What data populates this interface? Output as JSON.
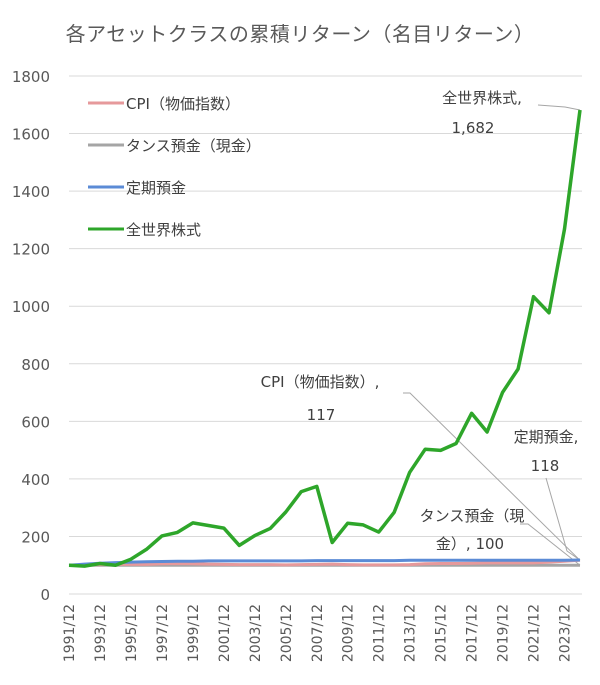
{
  "chart_data": {
    "type": "line",
    "title": "各アセットクラスの累積リターン（名目リターン）",
    "xlabel": "",
    "ylabel": "",
    "ylim": [
      0,
      1800
    ],
    "yticks": [
      0,
      200,
      400,
      600,
      800,
      1000,
      1200,
      1400,
      1600,
      1800
    ],
    "grid": true,
    "legend_position": "upper-left-inside",
    "x": [
      "1991/12",
      "1992/12",
      "1993/12",
      "1994/12",
      "1995/12",
      "1996/12",
      "1997/12",
      "1998/12",
      "1999/12",
      "2000/12",
      "2001/12",
      "2002/12",
      "2003/12",
      "2004/12",
      "2005/12",
      "2006/12",
      "2007/12",
      "2008/12",
      "2009/12",
      "2010/12",
      "2011/12",
      "2012/12",
      "2013/12",
      "2014/12",
      "2015/12",
      "2016/12",
      "2017/12",
      "2018/12",
      "2019/12",
      "2020/12",
      "2021/12",
      "2022/12",
      "2023/12",
      "2024/12"
    ],
    "xtick_labels": [
      "1991/12",
      "1993/12",
      "1995/12",
      "1997/12",
      "1999/12",
      "2001/12",
      "2003/12",
      "2005/12",
      "2007/12",
      "2009/12",
      "2011/12",
      "2013/12",
      "2015/12",
      "2017/12",
      "2019/12",
      "2021/12",
      "2023/12"
    ],
    "series": [
      {
        "name": "CPI（物価指数）",
        "color": "#E6999B",
        "values": [
          100,
          101,
          102,
          103,
          103,
          103,
          105,
          106,
          105,
          104,
          103,
          102,
          102,
          102,
          101,
          102,
          103,
          104,
          102,
          101,
          101,
          101,
          102,
          105,
          106,
          106,
          107,
          108,
          108,
          108,
          108,
          111,
          114,
          117
        ]
      },
      {
        "name": "タンス預金（現金）",
        "color": "#A5A5A5",
        "values": [
          100,
          100,
          100,
          100,
          100,
          100,
          100,
          100,
          100,
          100,
          100,
          100,
          100,
          100,
          100,
          100,
          100,
          100,
          100,
          100,
          100,
          100,
          100,
          100,
          100,
          100,
          100,
          100,
          100,
          100,
          100,
          100,
          100,
          100
        ]
      },
      {
        "name": "定期預金",
        "color": "#5B8BD6",
        "values": [
          100,
          104,
          107,
          109,
          111,
          112,
          113,
          114,
          114,
          115,
          115,
          115,
          115,
          115,
          115,
          115,
          116,
          116,
          116,
          116,
          116,
          116,
          117,
          117,
          117,
          117,
          117,
          117,
          117,
          117,
          117,
          117,
          117,
          118
        ]
      },
      {
        "name": "全世界株式",
        "color": "#2EA62A",
        "values": [
          100,
          97,
          106,
          100,
          121,
          155,
          202,
          214,
          247,
          238,
          229,
          169,
          203,
          228,
          285,
          356,
          374,
          179,
          246,
          240,
          215,
          284,
          423,
          503,
          499,
          523,
          628,
          563,
          701,
          782,
          1033,
          977,
          1268,
          1682
        ]
      }
    ],
    "annotations": [
      {
        "series": "全世界株式",
        "text_line1": "全世界株式,",
        "text_line2": "1,682"
      },
      {
        "series": "CPI（物価指数）",
        "text_line1": "CPI（物価指数）,",
        "text_line2": "117"
      },
      {
        "series": "定期預金",
        "text_line1": "定期預金,",
        "text_line2": "118"
      },
      {
        "series": "タンス預金（現金）",
        "text_line1": "タンス預金（現",
        "text_line2": "金）, 100"
      }
    ]
  }
}
